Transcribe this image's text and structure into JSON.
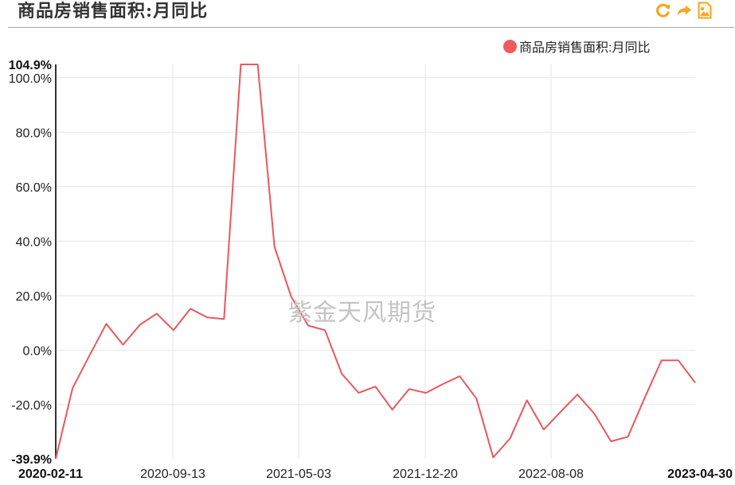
{
  "header": {
    "title": "商品房销售面积:月同比",
    "tools": [
      {
        "name": "refresh-icon",
        "glyph": "C"
      },
      {
        "name": "share-icon",
        "glyph": "➦"
      },
      {
        "name": "save-image-icon",
        "glyph": "image"
      }
    ]
  },
  "legend": {
    "label": "商品房销售面积:月同比",
    "color": "#f05a5f"
  },
  "watermark": "紫金天风期货",
  "colors": {
    "line": "#e8585d",
    "tool_icon": "#f5a623",
    "grid": "#e5e5e5",
    "axis": "#333333"
  },
  "chart_data": {
    "type": "line",
    "title": "商品房销售面积:月同比",
    "xlabel": "",
    "ylabel": "",
    "ylim": [
      -39.9,
      104.9
    ],
    "y_ticks": [
      "104.9%",
      "100.0%",
      "80.0%",
      "60.0%",
      "40.0%",
      "20.0%",
      "0.0%",
      "-20.0%",
      "-39.9%"
    ],
    "x_ticks": [
      "2020-02-11",
      "2020-09-13",
      "2021-05-03",
      "2021-12-20",
      "2022-08-08",
      "2023-04-30"
    ],
    "grid": true,
    "legend_position": "top-right",
    "series": [
      {
        "name": "商品房销售面积:月同比",
        "color": "#e8585d",
        "values": [
          -39.9,
          -14.0,
          -2.0,
          9.6,
          2.0,
          9.3,
          13.4,
          7.3,
          15.2,
          12.0,
          11.4,
          104.9,
          104.9,
          37.9,
          19.5,
          9.0,
          7.3,
          -8.7,
          -15.7,
          -13.4,
          -21.9,
          -14.3,
          -15.7,
          -12.5,
          -9.6,
          -17.8,
          -39.4,
          -32.4,
          -18.4,
          -29.2,
          -22.7,
          -16.3,
          -23.3,
          -33.5,
          -31.8,
          -17.5,
          -3.8,
          -3.8,
          -12.0
        ]
      }
    ]
  }
}
